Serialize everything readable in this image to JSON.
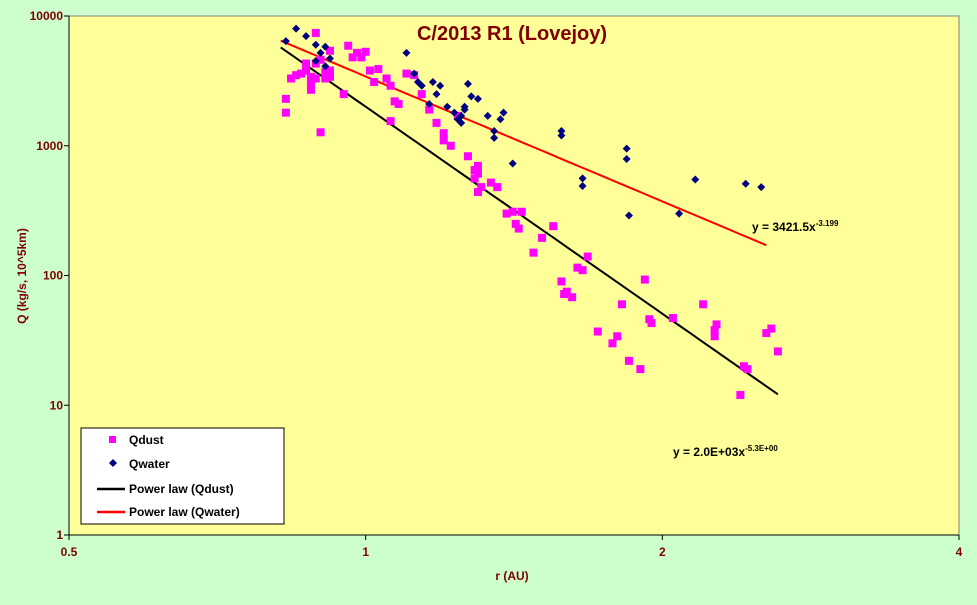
{
  "colors": {
    "background": "#ccffcc",
    "plot_area": "#ffff99",
    "title": "#800000",
    "axis_label": "#800000",
    "qdust": "#ff00ff",
    "qwater": "#000080",
    "fit_dust": "#000000",
    "fit_water": "#ff0000"
  },
  "chart_data": {
    "type": "scatter",
    "title": "C/2013 R1 (Lovejoy)",
    "xlabel": "r (AU)",
    "ylabel": "Q (kg/s, 10^5km)",
    "xscale": "log",
    "yscale": "log",
    "xlim": [
      0.5,
      4
    ],
    "ylim": [
      1,
      10000
    ],
    "xticks": [
      "0.5",
      "1",
      "2",
      "4"
    ],
    "yticks": [
      "1",
      "10",
      "100",
      "1000",
      "10000"
    ],
    "grid": false,
    "legend_position": "bottom-left",
    "legend": [
      "Qdust",
      "Qwater",
      "Power law (Qdust)",
      "Power law (Qwater)"
    ],
    "series": [
      {
        "name": "Qdust",
        "marker": "square",
        "points": [
          [
            0.83,
            2300
          ],
          [
            0.83,
            1800
          ],
          [
            0.84,
            3300
          ],
          [
            0.85,
            3500
          ],
          [
            0.86,
            3600
          ],
          [
            0.87,
            4300
          ],
          [
            0.87,
            3800
          ],
          [
            0.88,
            3400
          ],
          [
            0.88,
            3000
          ],
          [
            0.88,
            2700
          ],
          [
            0.89,
            3300
          ],
          [
            0.89,
            4300
          ],
          [
            0.89,
            7400
          ],
          [
            0.9,
            1270
          ],
          [
            0.9,
            4600
          ],
          [
            0.91,
            3700
          ],
          [
            0.91,
            3300
          ],
          [
            0.92,
            3400
          ],
          [
            0.92,
            3800
          ],
          [
            0.92,
            5400
          ],
          [
            0.95,
            2500
          ],
          [
            0.96,
            5900
          ],
          [
            0.97,
            4800
          ],
          [
            0.98,
            5200
          ],
          [
            0.99,
            4800
          ],
          [
            1.0,
            5300
          ],
          [
            1.01,
            3800
          ],
          [
            1.02,
            3100
          ],
          [
            1.03,
            3900
          ],
          [
            1.05,
            3300
          ],
          [
            1.06,
            2900
          ],
          [
            1.07,
            2200
          ],
          [
            1.06,
            1550
          ],
          [
            1.08,
            2100
          ],
          [
            1.1,
            3600
          ],
          [
            1.12,
            3500
          ],
          [
            1.14,
            2500
          ],
          [
            1.16,
            1900
          ],
          [
            1.18,
            1500
          ],
          [
            1.2,
            1250
          ],
          [
            1.2,
            1100
          ],
          [
            1.22,
            1000
          ],
          [
            1.24,
            1700
          ],
          [
            1.27,
            830
          ],
          [
            1.29,
            560
          ],
          [
            1.29,
            650
          ],
          [
            1.3,
            700
          ],
          [
            1.3,
            440
          ],
          [
            1.3,
            610
          ],
          [
            1.31,
            480
          ],
          [
            1.34,
            520
          ],
          [
            1.36,
            480
          ],
          [
            1.39,
            300
          ],
          [
            1.41,
            310
          ],
          [
            1.42,
            250
          ],
          [
            1.43,
            230
          ],
          [
            1.44,
            310
          ],
          [
            1.48,
            150
          ],
          [
            1.51,
            195
          ],
          [
            1.55,
            240
          ],
          [
            1.58,
            90
          ],
          [
            1.59,
            72
          ],
          [
            1.6,
            75
          ],
          [
            1.62,
            68
          ],
          [
            1.64,
            115
          ],
          [
            1.66,
            110
          ],
          [
            1.68,
            140
          ],
          [
            1.72,
            37
          ],
          [
            1.78,
            30
          ],
          [
            1.8,
            34
          ],
          [
            1.82,
            60
          ],
          [
            1.85,
            22
          ],
          [
            1.9,
            19
          ],
          [
            1.92,
            93
          ],
          [
            1.94,
            46
          ],
          [
            1.95,
            43
          ],
          [
            2.05,
            47
          ],
          [
            2.2,
            60
          ],
          [
            2.26,
            38
          ],
          [
            2.26,
            34
          ],
          [
            2.27,
            42
          ],
          [
            2.4,
            12
          ],
          [
            2.42,
            20
          ],
          [
            2.44,
            19
          ],
          [
            2.55,
            36
          ],
          [
            2.58,
            39
          ],
          [
            2.62,
            26
          ]
        ]
      },
      {
        "name": "Qwater",
        "marker": "diamond",
        "points": [
          [
            0.83,
            6400
          ],
          [
            0.85,
            8000
          ],
          [
            0.87,
            7000
          ],
          [
            0.89,
            6000
          ],
          [
            0.89,
            4500
          ],
          [
            0.9,
            5200
          ],
          [
            0.91,
            5800
          ],
          [
            0.91,
            4100
          ],
          [
            0.92,
            4700
          ],
          [
            1.1,
            5200
          ],
          [
            1.12,
            3600
          ],
          [
            1.13,
            3100
          ],
          [
            1.14,
            2900
          ],
          [
            1.16,
            2100
          ],
          [
            1.17,
            3100
          ],
          [
            1.18,
            2500
          ],
          [
            1.19,
            2900
          ],
          [
            1.21,
            2000
          ],
          [
            1.23,
            1800
          ],
          [
            1.24,
            1600
          ],
          [
            1.25,
            1500
          ],
          [
            1.25,
            1700
          ],
          [
            1.26,
            2000
          ],
          [
            1.26,
            1900
          ],
          [
            1.27,
            3000
          ],
          [
            1.28,
            2400
          ],
          [
            1.3,
            2300
          ],
          [
            1.33,
            1700
          ],
          [
            1.35,
            1300
          ],
          [
            1.35,
            1150
          ],
          [
            1.37,
            1600
          ],
          [
            1.38,
            1800
          ],
          [
            1.41,
            730
          ],
          [
            1.58,
            1300
          ],
          [
            1.58,
            1200
          ],
          [
            1.66,
            560
          ],
          [
            1.66,
            490
          ],
          [
            1.84,
            950
          ],
          [
            1.84,
            790
          ],
          [
            1.85,
            290
          ],
          [
            2.08,
            300
          ],
          [
            2.16,
            550
          ],
          [
            2.43,
            510
          ],
          [
            2.52,
            480
          ]
        ]
      }
    ],
    "fits": [
      {
        "name": "Power law (Qdust)",
        "series": "Qdust",
        "a": 2000,
        "b": -5.3,
        "x_range": [
          0.82,
          2.62
        ],
        "equation_label": "y = 2.0E+03x",
        "equation_exponent": "-5.3E+00"
      },
      {
        "name": "Power law (Qwater)",
        "series": "Qwater",
        "a": 3421.5,
        "b": -3.199,
        "x_range": [
          0.82,
          2.55
        ],
        "equation_label": "y = 3421.5x",
        "equation_exponent": "-3.199"
      }
    ]
  }
}
